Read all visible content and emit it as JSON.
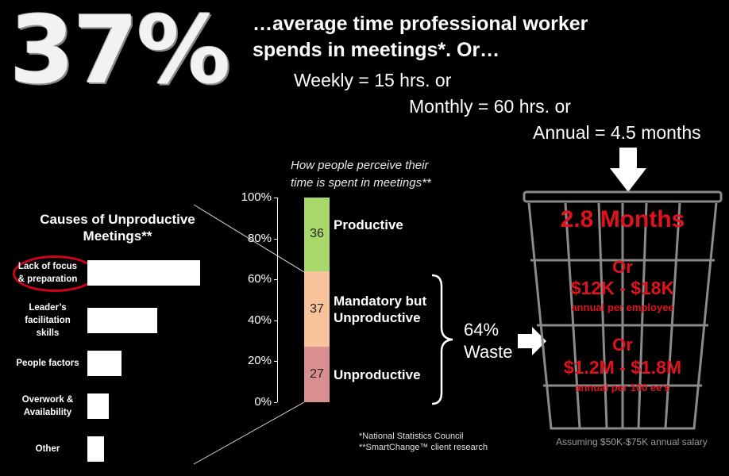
{
  "headline": {
    "big_stat": "37%",
    "line1": "…average time professional worker",
    "line2": "spends in meetings*. Or…",
    "weekly": "Weekly = 15 hrs. or",
    "monthly": "Monthly = 60 hrs. or",
    "annual": "Annual = 4.5 months"
  },
  "causes": {
    "title_line1": "Causes of Unproductive",
    "title_line2": "Meetings**",
    "items": [
      {
        "label_lines": [
          "Lack of focus",
          "& preparation"
        ]
      },
      {
        "label_lines": [
          "Leader’s",
          "facilitation",
          "skills"
        ]
      },
      {
        "label_lines": [
          "People factors"
        ]
      },
      {
        "label_lines": [
          "Overwork &",
          "Availability"
        ]
      },
      {
        "label_lines": [
          "Other"
        ]
      }
    ]
  },
  "perception": {
    "title_line1": "How people perceive their",
    "title_line2": "time is spent in meetings**"
  },
  "waste": {
    "pct": "64%",
    "label": "Waste"
  },
  "trash": {
    "months": "2.8 Months",
    "or1": "Or",
    "dollars1": "$12K - $18K",
    "sub1": "annual per employee",
    "or2": "Or",
    "dollars2": "$1.2M - $1.8M",
    "sub2": "annual per 100 ee's",
    "assumption": "Assuming $50K-$75K annual salary"
  },
  "footnotes": {
    "line1": "*National Statistics Council",
    "line2": "**SmartChange™ client research"
  },
  "colors": {
    "productive": "#a8d86a",
    "mandatory": "#f8c39a",
    "unproductive": "#d98e90",
    "accent_red": "#e0121c"
  },
  "chart_data": [
    {
      "type": "bar",
      "orientation": "horizontal",
      "title": "Causes of Unproductive Meetings**",
      "categories": [
        "Lack of focus & preparation",
        "Leader’s facilitation skills",
        "People factors",
        "Overwork & Availability",
        "Other"
      ],
      "values": [
        100,
        62,
        30,
        19,
        15
      ]
    },
    {
      "type": "bar",
      "stacked": true,
      "title": "How people perceive their time is spent in meetings**",
      "ylim": [
        0,
        100
      ],
      "yticks": [
        "0%",
        "20%",
        "40%",
        "60%",
        "80%",
        "100%"
      ],
      "series": [
        {
          "name": "Unproductive",
          "values": [
            27
          ]
        },
        {
          "name": "Mandatory but Unproductive",
          "values": [
            37
          ]
        },
        {
          "name": "Productive",
          "values": [
            36
          ]
        }
      ]
    }
  ]
}
